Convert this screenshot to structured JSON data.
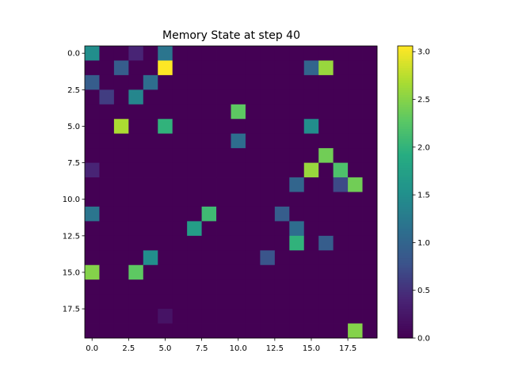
{
  "chart_data": {
    "type": "heatmap",
    "title": "Memory State at step 40",
    "xlabel": "",
    "ylabel": "",
    "rows": 20,
    "cols": 20,
    "xlim": [
      -0.5,
      19.5
    ],
    "ylim": [
      19.5,
      -0.5
    ],
    "x_ticks": [
      0.0,
      2.5,
      5.0,
      7.5,
      10.0,
      12.5,
      15.0,
      17.5
    ],
    "x_tick_labels": [
      "0.0",
      "2.5",
      "5.0",
      "7.5",
      "10.0",
      "12.5",
      "15.0",
      "17.5"
    ],
    "y_ticks": [
      0.0,
      2.5,
      5.0,
      7.5,
      10.0,
      12.5,
      15.0,
      17.5
    ],
    "y_tick_labels": [
      "0.0",
      "2.5",
      "5.0",
      "7.5",
      "10.0",
      "12.5",
      "15.0",
      "17.5"
    ],
    "colormap": "viridis",
    "vmin": 0.0,
    "vmax": 3.06,
    "colorbar_ticks": [
      0.0,
      0.5,
      1.0,
      1.5,
      2.0,
      2.5,
      3.0
    ],
    "colorbar_tick_labels": [
      "0.0",
      "0.5",
      "1.0",
      "1.5",
      "2.0",
      "2.5",
      "3.0"
    ],
    "grid": false,
    "default_value": 0.0,
    "cells": [
      {
        "row": 0,
        "col": 0,
        "value": 1.5
      },
      {
        "row": 0,
        "col": 3,
        "value": 0.4
      },
      {
        "row": 0,
        "col": 5,
        "value": 1.2
      },
      {
        "row": 1,
        "col": 2,
        "value": 0.9
      },
      {
        "row": 1,
        "col": 5,
        "value": 3.06
      },
      {
        "row": 1,
        "col": 15,
        "value": 1.0
      },
      {
        "row": 1,
        "col": 16,
        "value": 2.6
      },
      {
        "row": 2,
        "col": 0,
        "value": 0.9
      },
      {
        "row": 2,
        "col": 4,
        "value": 1.1
      },
      {
        "row": 3,
        "col": 1,
        "value": 0.6
      },
      {
        "row": 3,
        "col": 3,
        "value": 1.4
      },
      {
        "row": 4,
        "col": 10,
        "value": 2.3
      },
      {
        "row": 5,
        "col": 2,
        "value": 2.7
      },
      {
        "row": 5,
        "col": 5,
        "value": 2.0
      },
      {
        "row": 5,
        "col": 15,
        "value": 1.5
      },
      {
        "row": 6,
        "col": 10,
        "value": 1.1
      },
      {
        "row": 7,
        "col": 16,
        "value": 2.4
      },
      {
        "row": 8,
        "col": 0,
        "value": 0.4
      },
      {
        "row": 8,
        "col": 15,
        "value": 2.6
      },
      {
        "row": 8,
        "col": 17,
        "value": 2.2
      },
      {
        "row": 9,
        "col": 14,
        "value": 1.0
      },
      {
        "row": 9,
        "col": 17,
        "value": 0.7
      },
      {
        "row": 9,
        "col": 18,
        "value": 2.4
      },
      {
        "row": 11,
        "col": 0,
        "value": 1.2
      },
      {
        "row": 11,
        "col": 8,
        "value": 2.1
      },
      {
        "row": 11,
        "col": 13,
        "value": 0.9
      },
      {
        "row": 12,
        "col": 7,
        "value": 1.7
      },
      {
        "row": 12,
        "col": 14,
        "value": 1.1
      },
      {
        "row": 13,
        "col": 14,
        "value": 2.0
      },
      {
        "row": 13,
        "col": 16,
        "value": 0.9
      },
      {
        "row": 14,
        "col": 4,
        "value": 1.5
      },
      {
        "row": 14,
        "col": 12,
        "value": 0.8
      },
      {
        "row": 15,
        "col": 0,
        "value": 2.5
      },
      {
        "row": 15,
        "col": 3,
        "value": 2.3
      },
      {
        "row": 18,
        "col": 5,
        "value": 0.2
      },
      {
        "row": 19,
        "col": 18,
        "value": 2.5
      }
    ]
  }
}
